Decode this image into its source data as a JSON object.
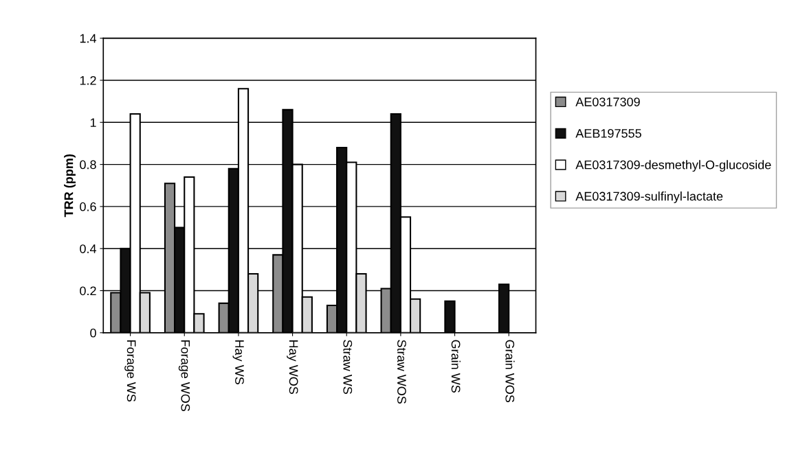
{
  "chart_data": {
    "type": "bar",
    "ylabel": "TRR (ppm)",
    "categories": [
      "Forage WS",
      "Forage WOS",
      "Hay WS",
      "Hay WOS",
      "Straw WS",
      "Straw WOS",
      "Grain WS",
      "Grain WOS"
    ],
    "series": [
      {
        "name": "AE0317309",
        "color": "#8c8c8c",
        "values": [
          0.19,
          0.71,
          0.14,
          0.37,
          0.13,
          0.21,
          null,
          null
        ]
      },
      {
        "name": "AEB197555",
        "color": "#111111",
        "values": [
          0.4,
          0.5,
          0.78,
          1.06,
          0.88,
          1.04,
          0.15,
          0.23
        ]
      },
      {
        "name": "AE0317309-desmethyl-O-glucoside",
        "color": "#ffffff",
        "values": [
          1.04,
          0.74,
          1.16,
          0.8,
          0.81,
          0.55,
          null,
          null
        ]
      },
      {
        "name": "AE0317309-sulfinyl-lactate",
        "color": "#d9d9d9",
        "values": [
          0.19,
          0.09,
          0.28,
          0.17,
          0.28,
          0.16,
          null,
          null
        ]
      }
    ],
    "ylim": [
      0,
      1.4
    ],
    "yticks": [
      0,
      0.2,
      0.4,
      0.6,
      0.8,
      1,
      1.2,
      1.4
    ],
    "grid": "y",
    "legend": "right"
  }
}
